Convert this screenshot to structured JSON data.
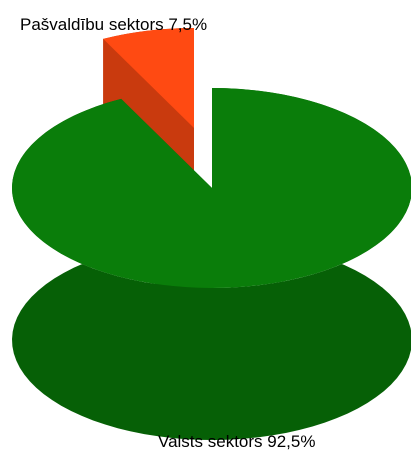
{
  "chart_data": {
    "type": "pie",
    "title": "",
    "labels": [
      "Pašvaldību sektors",
      "Valsts sektors"
    ],
    "values": [
      7.5,
      92.5
    ],
    "value_labels": [
      "Pašvaldību sektors 7,5%",
      "Valsts sektors 92,5%"
    ],
    "colors": [
      "#ff4a12",
      "#0a7d0a"
    ],
    "side_colors": [
      "#c93a0e",
      "#066006"
    ],
    "style": "3d-exploded",
    "legend": "none"
  }
}
